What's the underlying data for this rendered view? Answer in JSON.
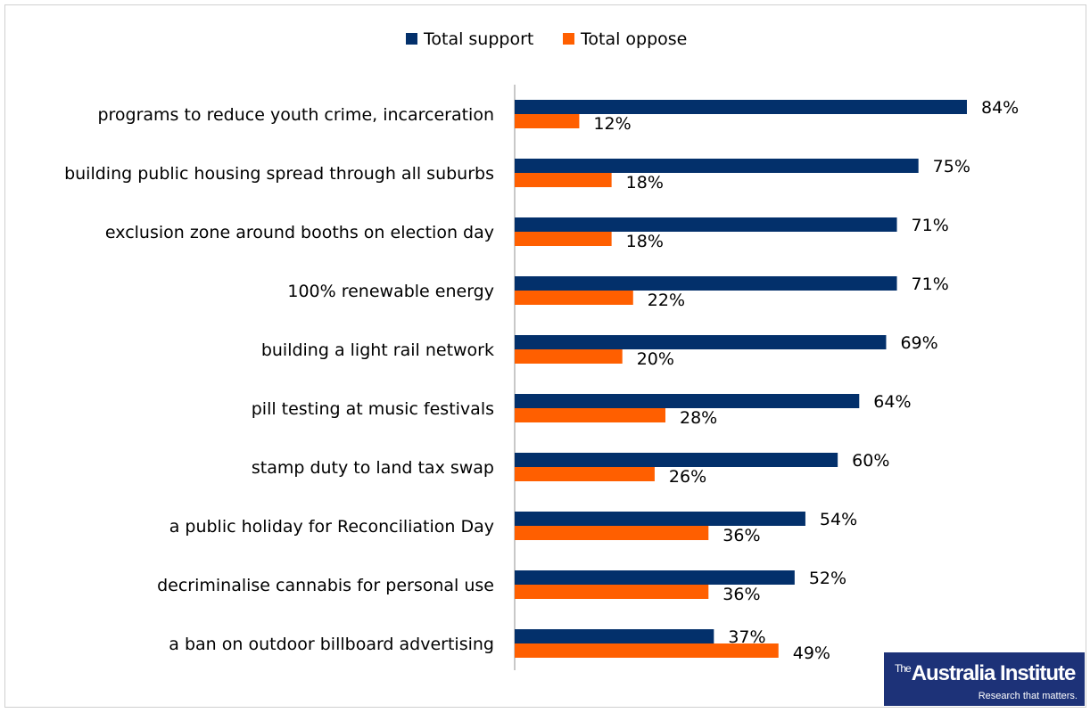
{
  "chart_data": {
    "type": "bar",
    "orientation": "horizontal",
    "categories": [
      "programs to reduce youth crime, incarceration",
      "building public housing spread through all suburbs",
      "exclusion zone around booths on election day",
      "100% renewable energy",
      "building a light rail network",
      "pill testing at music festivals",
      "stamp duty to land tax swap",
      "a public holiday for Reconciliation Day",
      "decriminalise cannabis for personal use",
      "a ban on outdoor billboard advertising"
    ],
    "series": [
      {
        "name": "Total support",
        "color": "#03306b",
        "values": [
          84,
          75,
          71,
          71,
          69,
          64,
          60,
          54,
          52,
          37
        ]
      },
      {
        "name": "Total oppose",
        "color": "#ff5f00",
        "values": [
          12,
          18,
          18,
          22,
          20,
          28,
          26,
          36,
          36,
          49
        ]
      }
    ],
    "value_suffix": "%",
    "xlim": [
      0,
      100
    ],
    "grid": false,
    "legend_position": "top"
  },
  "logo": {
    "text_small": "The",
    "text_main": "Australia Institute",
    "tagline": "Research that matters."
  }
}
